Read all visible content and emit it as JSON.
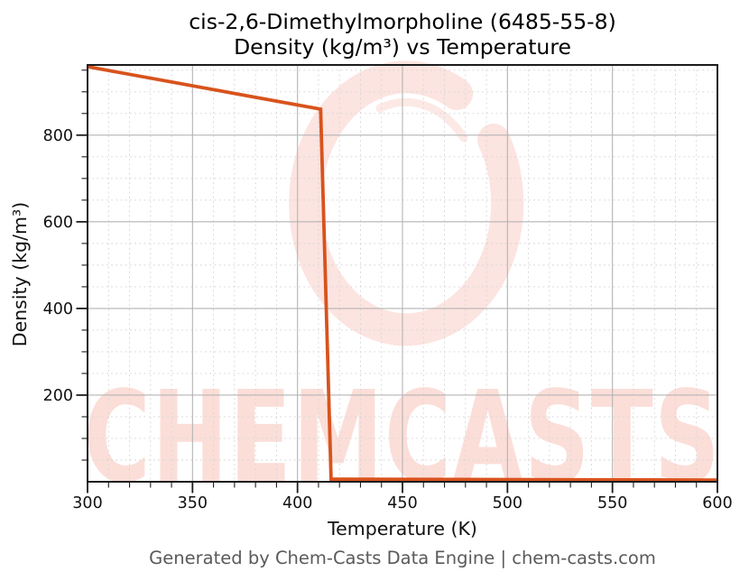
{
  "figure": {
    "title_line1": "cis-2,6-Dimethylmorpholine (6485-55-8)",
    "title_line2": "Density (kg/m³) vs Temperature",
    "footer": "Generated by Chem-Casts Data Engine | chem-casts.com"
  },
  "watermark": {
    "text": "CHEMCASTS",
    "logo": "chemcasts-ring-logo",
    "color": "#e9583c",
    "text_opacity": 0.2,
    "logo_opacity": 0.16
  },
  "chart_data": {
    "type": "line",
    "title": "cis-2,6-Dimethylmorpholine (6485-55-8) Density (kg/m³) vs Temperature",
    "xlabel": "Temperature (K)",
    "ylabel": "Density (kg/m³)",
    "xlim": [
      300,
      600
    ],
    "ylim": [
      0,
      962
    ],
    "x_major_ticks": [
      300,
      350,
      400,
      450,
      500,
      550,
      600
    ],
    "y_major_ticks": [
      200,
      400,
      600,
      800
    ],
    "x_minor_step": 10,
    "y_minor_step": 50,
    "grid": {
      "major": "solid",
      "minor": "dotted"
    },
    "legend_position": "none",
    "series": [
      {
        "name": "Density (kg/m³)",
        "color": "#d8531d",
        "line_width": 3.8,
        "points": [
          [
            300,
            958
          ],
          [
            411,
            860
          ],
          [
            416,
            6
          ],
          [
            600,
            4
          ]
        ]
      }
    ]
  },
  "colors": {
    "line": "#d8531d",
    "frame": "#1c1c1c",
    "major_grid": "#b4b4b4",
    "minor_grid": "#d7d7d7",
    "tick_text": "#111111",
    "footer_text": "#5a5a5a",
    "background": "#ffffff"
  }
}
